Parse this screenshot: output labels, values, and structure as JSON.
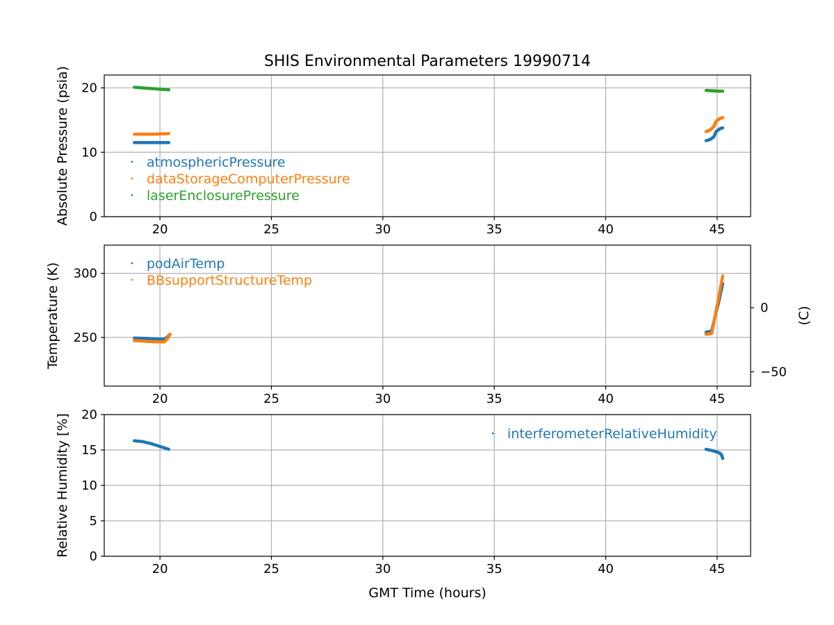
{
  "chart_data": {
    "type": "scatter",
    "title": "SHIS Environmental Parameters 19990714",
    "xlabel": "GMT Time (hours)",
    "xlim": [
      17.5,
      46.5
    ],
    "xticks": [
      20,
      25,
      30,
      35,
      40,
      45
    ],
    "colors": {
      "blue": "#1f77b4",
      "orange": "#ff7f0e",
      "green": "#2ca02c",
      "grid": "#b0b0b0"
    },
    "panels": [
      {
        "ylabel": "Absolute Pressure (psia)",
        "ylim": [
          0,
          22
        ],
        "yticks": [
          0,
          10,
          20
        ],
        "grid": true,
        "legend": "lower-left",
        "series": [
          {
            "name": "atmosphericPressure",
            "color": "#1f77b4",
            "points": [
              [
                18.85,
                11.5
              ],
              [
                19.2,
                11.5
              ],
              [
                19.6,
                11.5
              ],
              [
                20.0,
                11.5
              ],
              [
                20.4,
                11.5
              ],
              [
                44.5,
                11.8
              ],
              [
                44.7,
                12.0
              ],
              [
                44.85,
                12.4
              ],
              [
                44.95,
                13.2
              ],
              [
                45.1,
                13.6
              ],
              [
                45.25,
                13.8
              ]
            ]
          },
          {
            "name": "dataStorageComputerPressure",
            "color": "#ff7f0e",
            "points": [
              [
                18.85,
                12.8
              ],
              [
                19.2,
                12.8
              ],
              [
                19.6,
                12.8
              ],
              [
                20.0,
                12.85
              ],
              [
                20.4,
                12.9
              ],
              [
                44.5,
                13.2
              ],
              [
                44.7,
                13.5
              ],
              [
                44.85,
                14.0
              ],
              [
                44.95,
                14.8
              ],
              [
                45.1,
                15.2
              ],
              [
                45.25,
                15.4
              ]
            ]
          },
          {
            "name": "laserEnclosurePressure",
            "color": "#2ca02c",
            "points": [
              [
                18.85,
                20.1
              ],
              [
                19.2,
                20.0
              ],
              [
                19.6,
                19.9
              ],
              [
                20.0,
                19.8
              ],
              [
                20.4,
                19.7
              ],
              [
                44.5,
                19.6
              ],
              [
                44.8,
                19.55
              ],
              [
                45.0,
                19.5
              ],
              [
                45.25,
                19.5
              ]
            ]
          }
        ]
      },
      {
        "ylabel": "Temperature (K)",
        "ylabel_right": "(C)",
        "ylim": [
          212,
          322
        ],
        "yticks": [
          250,
          300
        ],
        "yticks_right_c": [
          -50,
          0
        ],
        "grid": true,
        "legend": "upper-left",
        "series": [
          {
            "name": "podAirTemp",
            "color": "#1f77b4",
            "points": [
              [
                18.85,
                249.5
              ],
              [
                19.3,
                249.3
              ],
              [
                19.8,
                248.8
              ],
              [
                20.2,
                248.5
              ],
              [
                20.35,
                250.5
              ],
              [
                20.45,
                252.5
              ],
              [
                44.5,
                254
              ],
              [
                44.75,
                255
              ],
              [
                44.85,
                262
              ],
              [
                44.95,
                270
              ],
              [
                45.05,
                276
              ],
              [
                45.15,
                284
              ],
              [
                45.25,
                292
              ]
            ]
          },
          {
            "name": "BBsupportStructureTemp",
            "color": "#ff7f0e",
            "points": [
              [
                18.85,
                247.5
              ],
              [
                19.3,
                247
              ],
              [
                19.8,
                246.5
              ],
              [
                20.2,
                246.5
              ],
              [
                20.35,
                249.5
              ],
              [
                20.45,
                252.5
              ],
              [
                44.5,
                252.5
              ],
              [
                44.75,
                253
              ],
              [
                44.85,
                261
              ],
              [
                44.95,
                271
              ],
              [
                45.05,
                279
              ],
              [
                45.15,
                289
              ],
              [
                45.25,
                298
              ]
            ]
          }
        ]
      },
      {
        "ylabel": "Relative Humidity [%]",
        "ylim": [
          0,
          20
        ],
        "yticks": [
          0,
          5,
          10,
          15,
          20
        ],
        "grid": true,
        "legend": "upper-right",
        "series": [
          {
            "name": "interferometerRelativeHumidity",
            "color": "#1f77b4",
            "points": [
              [
                18.85,
                16.3
              ],
              [
                19.2,
                16.2
              ],
              [
                19.6,
                15.9
              ],
              [
                20.0,
                15.5
              ],
              [
                20.4,
                15.1
              ],
              [
                44.5,
                15.1
              ],
              [
                44.8,
                14.9
              ],
              [
                45.1,
                14.6
              ],
              [
                45.2,
                14.3
              ],
              [
                45.25,
                13.8
              ]
            ]
          }
        ]
      }
    ]
  }
}
